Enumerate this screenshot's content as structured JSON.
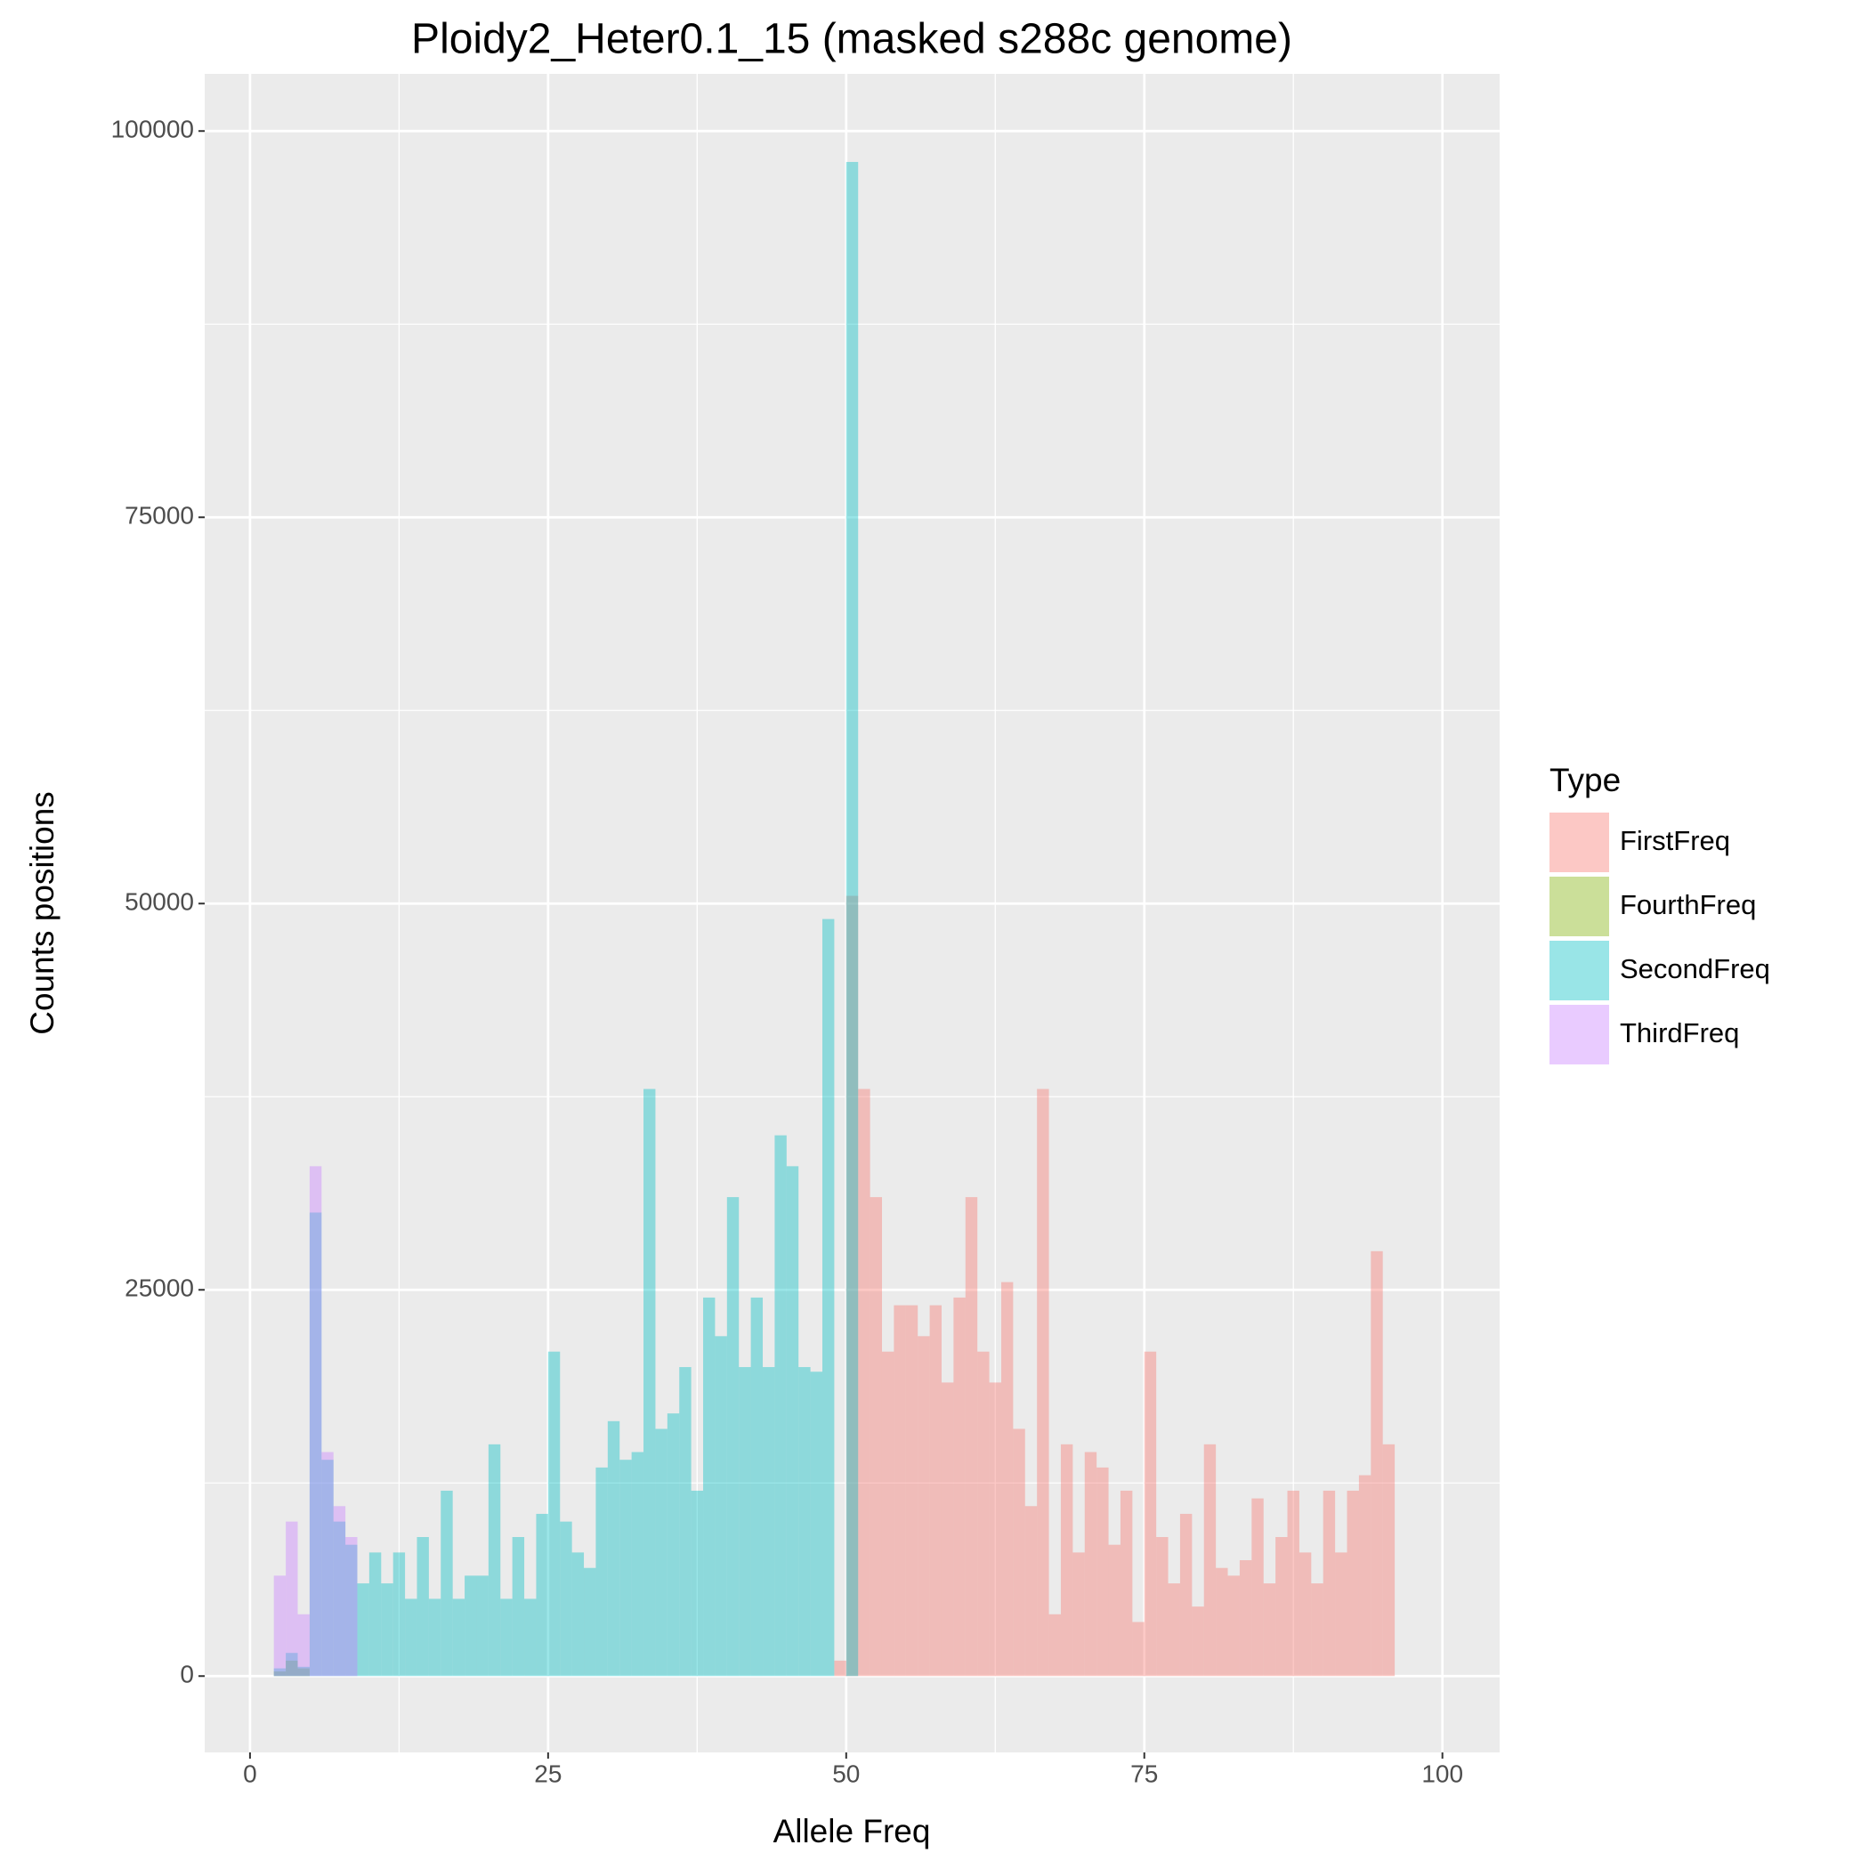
{
  "chart_data": {
    "type": "histogram",
    "title": "Ploidy2_Heter0.1_15 (masked s288c genome)",
    "x_label": "Allele Freq",
    "y_label": "Counts positions",
    "legend_title": "Type",
    "bins": [
      2,
      3,
      4,
      5,
      6,
      7,
      8,
      9,
      10,
      11,
      12,
      13,
      14,
      15,
      16,
      17,
      18,
      19,
      20,
      21,
      22,
      23,
      24,
      25,
      26,
      27,
      28,
      29,
      30,
      31,
      32,
      33,
      34,
      35,
      36,
      37,
      38,
      39,
      40,
      41,
      42,
      43,
      44,
      45,
      46,
      47,
      48,
      49,
      50,
      51,
      52,
      53,
      54,
      55,
      56,
      57,
      58,
      59,
      60,
      61,
      62,
      63,
      64,
      65,
      66,
      67,
      68,
      69,
      70,
      71,
      72,
      73,
      74,
      75,
      76,
      77,
      78,
      79,
      80,
      81,
      82,
      83,
      84,
      85,
      86,
      87,
      88,
      89,
      90,
      91,
      92,
      93,
      94,
      95,
      96
    ],
    "series": [
      {
        "name": "FirstFreq",
        "color": "#F8766D",
        "values": [
          0,
          0,
          0,
          0,
          0,
          0,
          0,
          0,
          0,
          0,
          0,
          0,
          0,
          0,
          0,
          0,
          0,
          0,
          0,
          0,
          0,
          0,
          0,
          0,
          0,
          0,
          0,
          0,
          0,
          0,
          0,
          0,
          0,
          0,
          0,
          0,
          0,
          0,
          0,
          0,
          0,
          0,
          0,
          0,
          0,
          0,
          0,
          1000,
          50500,
          38000,
          31000,
          21000,
          24000,
          24000,
          22000,
          24000,
          19000,
          24500,
          31000,
          21000,
          19000,
          25500,
          16000,
          11000,
          38000,
          4000,
          15000,
          8000,
          14500,
          13500,
          8500,
          12000,
          3500,
          21000,
          9000,
          6000,
          10500,
          4500,
          15000,
          7000,
          6500,
          7500,
          11500,
          6000,
          9000,
          12000,
          8000,
          6000,
          12000,
          8000,
          12000,
          13000,
          27500,
          15000
        ]
      },
      {
        "name": "FourthFreq",
        "color": "#7CAE00",
        "values": [
          300,
          1000,
          500,
          0,
          0,
          0,
          0,
          0,
          0,
          0,
          0,
          0,
          0,
          0,
          0,
          0,
          0,
          0,
          0,
          0,
          0,
          0,
          0,
          0,
          0,
          0,
          0,
          0,
          0,
          0,
          0,
          0,
          0,
          0,
          0,
          0,
          0,
          0,
          0,
          0,
          0,
          0,
          0,
          0,
          0,
          0,
          0,
          0,
          0,
          0,
          0,
          0,
          0,
          0,
          0,
          0,
          0,
          0,
          0,
          0,
          0,
          0,
          0,
          0,
          0,
          0,
          0,
          0,
          0,
          0,
          0,
          0,
          0,
          0,
          0,
          0,
          0,
          0,
          0,
          0,
          0,
          0,
          0,
          0,
          0,
          0,
          0,
          0,
          0,
          0,
          0,
          0,
          0,
          0
        ]
      },
      {
        "name": "SecondFreq",
        "color": "#00BFC4",
        "values": [
          500,
          1500,
          600,
          30000,
          14000,
          10000,
          8500,
          6000,
          8000,
          6000,
          8000,
          5000,
          9000,
          5000,
          12000,
          5000,
          6500,
          6500,
          15000,
          5000,
          9000,
          5000,
          10500,
          21000,
          10000,
          8000,
          7000,
          13500,
          16500,
          14000,
          14500,
          38000,
          16000,
          17000,
          20000,
          12000,
          24500,
          22000,
          31000,
          20000,
          24500,
          20000,
          35000,
          33000,
          20000,
          19700,
          49000,
          0,
          98000,
          0,
          0,
          0,
          0,
          0,
          0,
          0,
          0,
          0,
          0,
          0,
          0,
          0,
          0,
          0,
          0,
          0,
          0,
          0,
          0,
          0,
          0,
          0,
          0,
          0,
          0,
          0,
          0,
          0,
          0,
          0,
          0,
          0,
          0,
          0,
          0,
          0,
          0,
          0,
          0,
          0,
          0,
          0,
          0,
          0
        ]
      },
      {
        "name": "ThirdFreq",
        "color": "#C77CFF",
        "values": [
          6500,
          10000,
          4000,
          33000,
          14500,
          11000,
          9000,
          0,
          0,
          0,
          0,
          0,
          0,
          0,
          0,
          0,
          0,
          0,
          0,
          0,
          0,
          0,
          0,
          0,
          0,
          0,
          0,
          0,
          0,
          0,
          0,
          0,
          0,
          0,
          0,
          0,
          0,
          0,
          0,
          0,
          0,
          0,
          0,
          0,
          0,
          0,
          0,
          0,
          0,
          0,
          0,
          0,
          0,
          0,
          0,
          0,
          0,
          0,
          0,
          0,
          0,
          0,
          0,
          0,
          0,
          0,
          0,
          0,
          0,
          0,
          0,
          0,
          0,
          0,
          0,
          0,
          0,
          0,
          0,
          0,
          0,
          0,
          0,
          0,
          0,
          0,
          0,
          0,
          0,
          0,
          0,
          0,
          0,
          0
        ]
      }
    ],
    "xlim": [
      -3.8,
      104.8
    ],
    "xticks": [
      0,
      25,
      50,
      75,
      100
    ],
    "ylim": [
      -4940,
      103700
    ],
    "yticks": [
      0,
      25000,
      50000,
      75000,
      100000
    ],
    "grid": true
  }
}
